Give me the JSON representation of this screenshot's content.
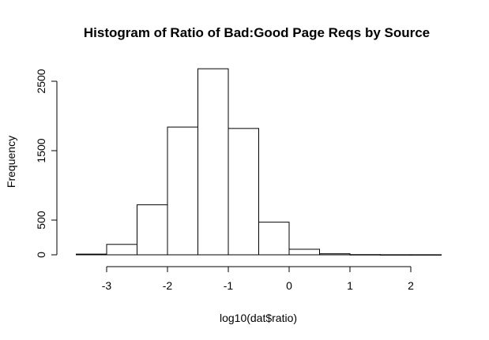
{
  "chart_data": {
    "type": "histogram",
    "title": "Histogram of Ratio of Bad:Good Page Reqs by Source",
    "xlabel": "log10(dat$ratio)",
    "ylabel": "Frequency",
    "bins": [
      {
        "x0": -3.5,
        "x1": -3.0,
        "count": 10
      },
      {
        "x0": -3.0,
        "x1": -2.5,
        "count": 150
      },
      {
        "x0": -2.5,
        "x1": -2.0,
        "count": 720
      },
      {
        "x0": -2.0,
        "x1": -1.5,
        "count": 1840
      },
      {
        "x0": -1.5,
        "x1": -1.0,
        "count": 2680
      },
      {
        "x0": -1.0,
        "x1": -0.5,
        "count": 1820
      },
      {
        "x0": -0.5,
        "x1": 0.0,
        "count": 470
      },
      {
        "x0": 0.0,
        "x1": 0.5,
        "count": 80
      },
      {
        "x0": 0.5,
        "x1": 1.0,
        "count": 15
      },
      {
        "x0": 1.0,
        "x1": 1.5,
        "count": 3
      },
      {
        "x0": 1.5,
        "x1": 2.0,
        "count": 1
      },
      {
        "x0": 2.0,
        "x1": 2.5,
        "count": 1
      }
    ],
    "xticks": [
      -3,
      -2,
      -1,
      0,
      1,
      2
    ],
    "xtick_labels": [
      "-3",
      "-2",
      "-1",
      "0",
      "1",
      "2"
    ],
    "yticks": [
      0,
      500,
      1500,
      2500
    ],
    "ytick_labels": [
      "0",
      "500",
      "1500",
      "2500"
    ],
    "xlim": [
      -3.5,
      2.5
    ],
    "ylim": [
      0,
      2700
    ],
    "grid": false,
    "bar_fill": "#ffffff",
    "bar_stroke": "#000000"
  }
}
